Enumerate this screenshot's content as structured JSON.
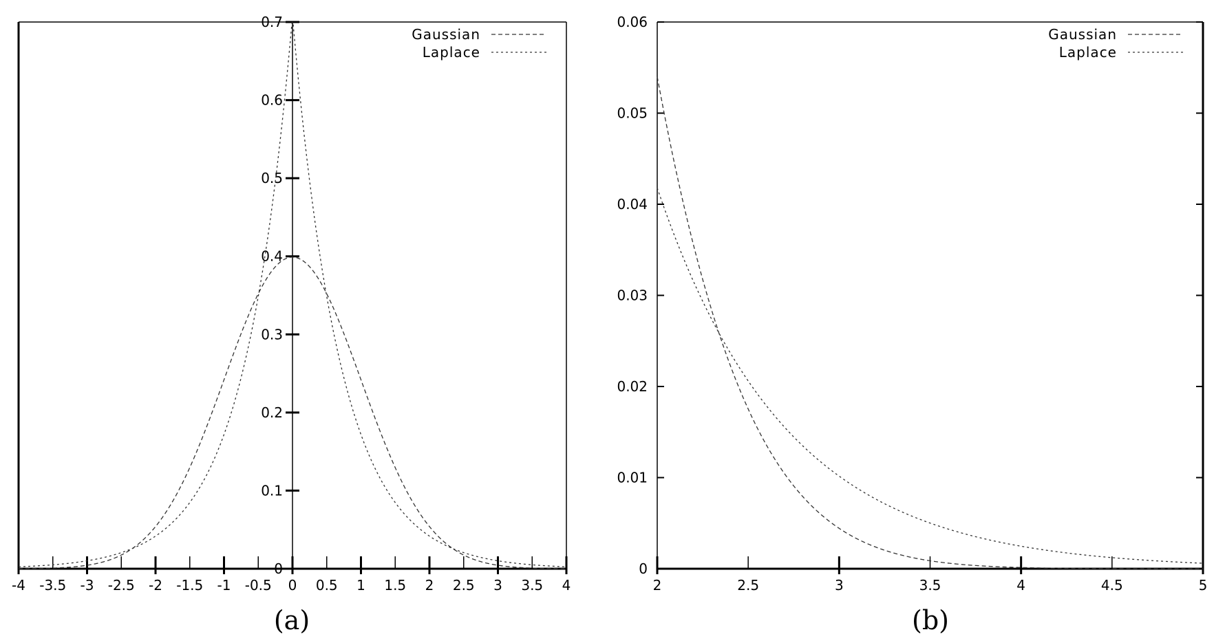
{
  "chart_data": [
    {
      "type": "line",
      "panel_label": "(a)",
      "title": "",
      "xlabel": "",
      "ylabel": "",
      "xlim": [
        -4,
        4
      ],
      "ylim": [
        0,
        0.7
      ],
      "xticks": [
        "-4",
        "-3.5",
        "-3",
        "-2.5",
        "-2",
        "-1.5",
        "-1",
        "-0.5",
        "0",
        "0.5",
        "1",
        "1.5",
        "2",
        "2.5",
        "3",
        "3.5",
        "4"
      ],
      "yticks": [
        "0",
        "0.1",
        "0.2",
        "0.3",
        "0.4",
        "0.5",
        "0.6",
        "0.7"
      ],
      "grid": false,
      "legend_position": "upper right",
      "x": [
        -4,
        -3.5,
        -3,
        -2.5,
        -2,
        -1.5,
        -1,
        -0.5,
        0,
        0.5,
        1,
        1.5,
        2,
        2.5,
        3,
        3.5,
        4
      ],
      "series": [
        {
          "name": "Gaussian",
          "style": "dashed",
          "values": [
            0.0001,
            0.0009,
            0.0044,
            0.0175,
            0.054,
            0.1295,
            0.242,
            0.3521,
            0.3989,
            0.3521,
            0.242,
            0.1295,
            0.054,
            0.0175,
            0.0044,
            0.0009,
            0.0001
          ]
        },
        {
          "name": "Laplace",
          "style": "dotted",
          "values": [
            0.0025,
            0.005,
            0.0101,
            0.0206,
            0.0418,
            0.085,
            0.1719,
            0.3492,
            0.7071,
            0.3492,
            0.1719,
            0.085,
            0.0418,
            0.0206,
            0.0101,
            0.005,
            0.0025
          ]
        }
      ]
    },
    {
      "type": "line",
      "panel_label": "(b)",
      "title": "",
      "xlabel": "",
      "ylabel": "",
      "xlim": [
        2,
        5
      ],
      "ylim": [
        0,
        0.06
      ],
      "xticks": [
        "2",
        "2.5",
        "3",
        "3.5",
        "4",
        "4.5",
        "5"
      ],
      "yticks": [
        "0",
        "0.01",
        "0.02",
        "0.03",
        "0.04",
        "0.05",
        "0.06"
      ],
      "grid": false,
      "legend_position": "upper right",
      "x": [
        2,
        2.5,
        3,
        3.5,
        4,
        4.5,
        5
      ],
      "series": [
        {
          "name": "Gaussian",
          "style": "dashed",
          "values": [
            0.054,
            0.0175,
            0.0044,
            0.0009,
            0.0001,
            0.0,
            0.0
          ]
        },
        {
          "name": "Laplace",
          "style": "dotted",
          "values": [
            0.0418,
            0.0206,
            0.0101,
            0.005,
            0.0025,
            0.0012,
            0.0006
          ]
        }
      ]
    }
  ],
  "legend": {
    "gaussian": "Gaussian",
    "laplace": "Laplace"
  },
  "captions": {
    "a": "(a)",
    "b": "(b)"
  }
}
